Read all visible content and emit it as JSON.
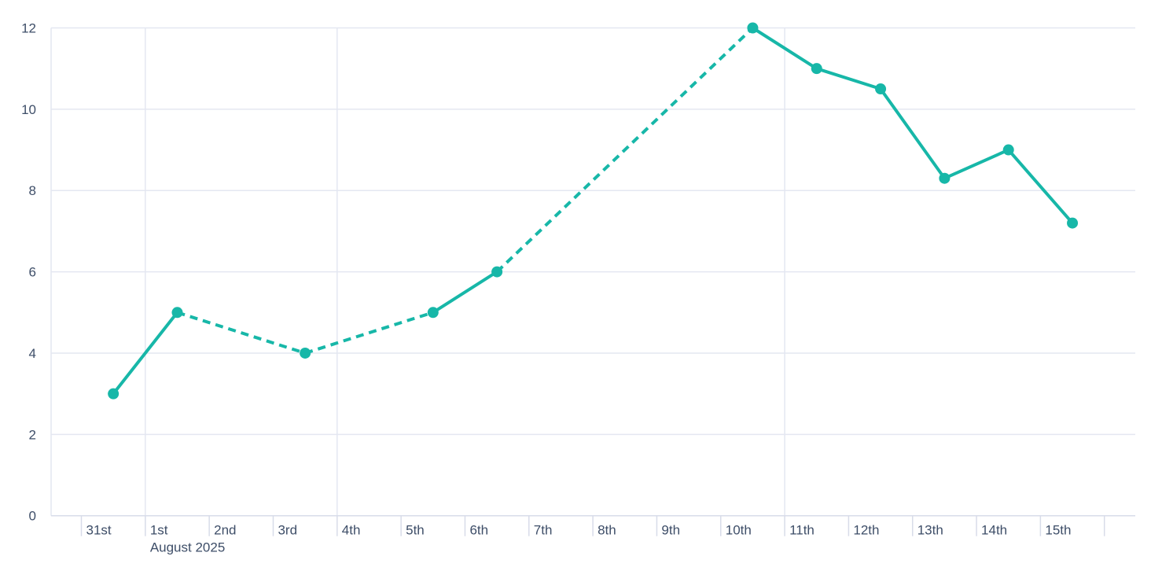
{
  "chart_data": {
    "type": "line",
    "x_axis": {
      "tick_labels": [
        "31st",
        "1st",
        "2nd",
        "3rd",
        "4th",
        "5th",
        "6th",
        "7th",
        "8th",
        "9th",
        "10th",
        "11th",
        "12th",
        "13th",
        "14th",
        "15th",
        ""
      ],
      "secondary_label": "August 2025",
      "secondary_label_index": 1
    },
    "y_axis": {
      "tick_labels": [
        "0",
        "2",
        "4",
        "6",
        "8",
        "10",
        "12"
      ],
      "tick_values": [
        0,
        2,
        4,
        6,
        8,
        10,
        12
      ],
      "min": 0,
      "max": 12
    },
    "series": [
      {
        "name": "series-1",
        "color": "#17b7a8",
        "marker": "circle",
        "points": [
          {
            "x_label": "31st",
            "x_index": 0,
            "value": 3
          },
          {
            "x_label": "1st",
            "x_index": 1,
            "value": 5
          },
          {
            "x_label": "3rd",
            "x_index": 3,
            "value": 4
          },
          {
            "x_label": "5th",
            "x_index": 5,
            "value": 5
          },
          {
            "x_label": "6th",
            "x_index": 6,
            "value": 6
          },
          {
            "x_label": "10th",
            "x_index": 10,
            "value": 12
          },
          {
            "x_label": "11th",
            "x_index": 11,
            "value": 11
          },
          {
            "x_label": "12th",
            "x_index": 12,
            "value": 10.5
          },
          {
            "x_label": "13th",
            "x_index": 13,
            "value": 8.3
          },
          {
            "x_label": "14th",
            "x_index": 14,
            "value": 9
          },
          {
            "x_label": "15th",
            "x_index": 15,
            "value": 7.2
          }
        ],
        "segment_styles": [
          "solid",
          "dashed",
          "dashed",
          "solid",
          "dashed",
          "solid",
          "solid",
          "solid",
          "solid",
          "solid"
        ]
      }
    ],
    "grid": {
      "horizontal_at_values": [
        2,
        4,
        6,
        8,
        10,
        12
      ],
      "vertical_at_boundary_indices": [
        1,
        4,
        11
      ]
    },
    "colors": {
      "line": "#17b7a8",
      "grid": "#e4e7f1",
      "axis": "#d8dce9",
      "label": "#3e4e68",
      "background": "#ffffff"
    },
    "layout_hints": {
      "legend": "none",
      "grid": "on",
      "ylim": [
        0,
        12
      ]
    }
  }
}
